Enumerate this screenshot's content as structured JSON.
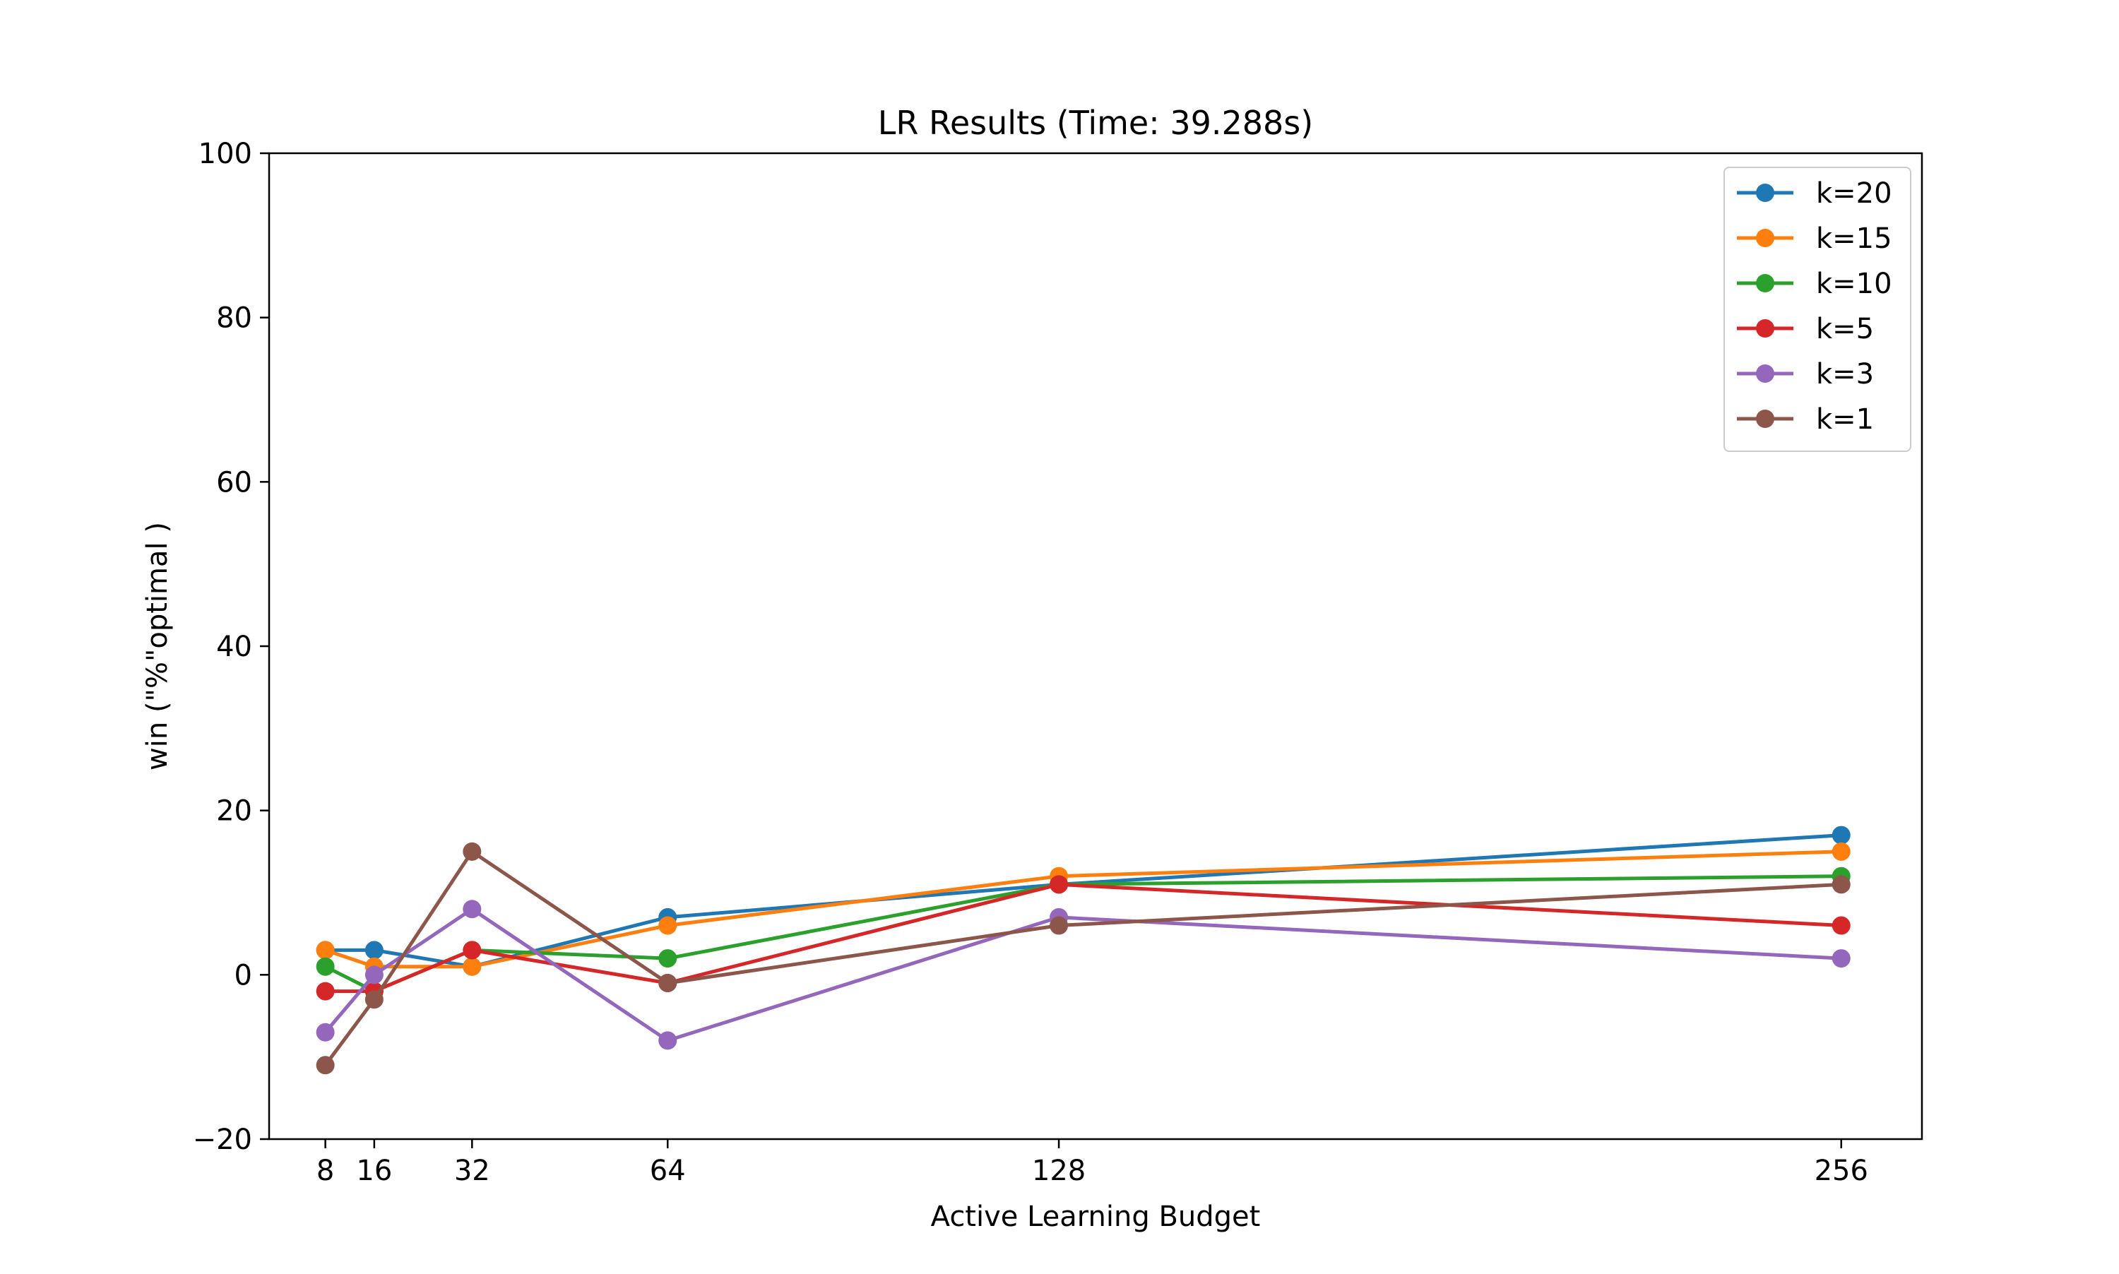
{
  "chart_data": {
    "type": "line",
    "title": "LR Results (Time: 39.288s)",
    "xlabel": "Active Learning Budget",
    "ylabel": "win (\"%\"optimal )",
    "x": [
      8,
      16,
      32,
      64,
      128,
      256
    ],
    "x_tick_labels": [
      "8",
      "16",
      "32",
      "64",
      "128",
      "256"
    ],
    "xlim": [
      -1.2,
      269.2
    ],
    "ylim": [
      -20,
      100
    ],
    "y_ticks": [
      -20,
      0,
      20,
      40,
      60,
      80,
      100
    ],
    "y_tick_labels": [
      "−20",
      "0",
      "20",
      "40",
      "60",
      "80",
      "100"
    ],
    "grid": false,
    "legend_position": "top-right",
    "markers": true,
    "series": [
      {
        "name": "k=20",
        "color": "#1f77b4",
        "values": [
          3,
          3,
          1,
          7,
          11,
          17
        ]
      },
      {
        "name": "k=15",
        "color": "#ff7f0e",
        "values": [
          3,
          1,
          1,
          6,
          12,
          15
        ]
      },
      {
        "name": "k=10",
        "color": "#2ca02c",
        "values": [
          1,
          -2,
          3,
          2,
          11,
          12
        ]
      },
      {
        "name": "k=5",
        "color": "#d62728",
        "values": [
          -2,
          -2,
          3,
          -1,
          11,
          6
        ]
      },
      {
        "name": "k=3",
        "color": "#9467bd",
        "values": [
          -7,
          0,
          8,
          -8,
          7,
          2
        ]
      },
      {
        "name": "k=1",
        "color": "#8c564b",
        "values": [
          -11,
          -3,
          15,
          -1,
          6,
          11
        ]
      }
    ]
  }
}
